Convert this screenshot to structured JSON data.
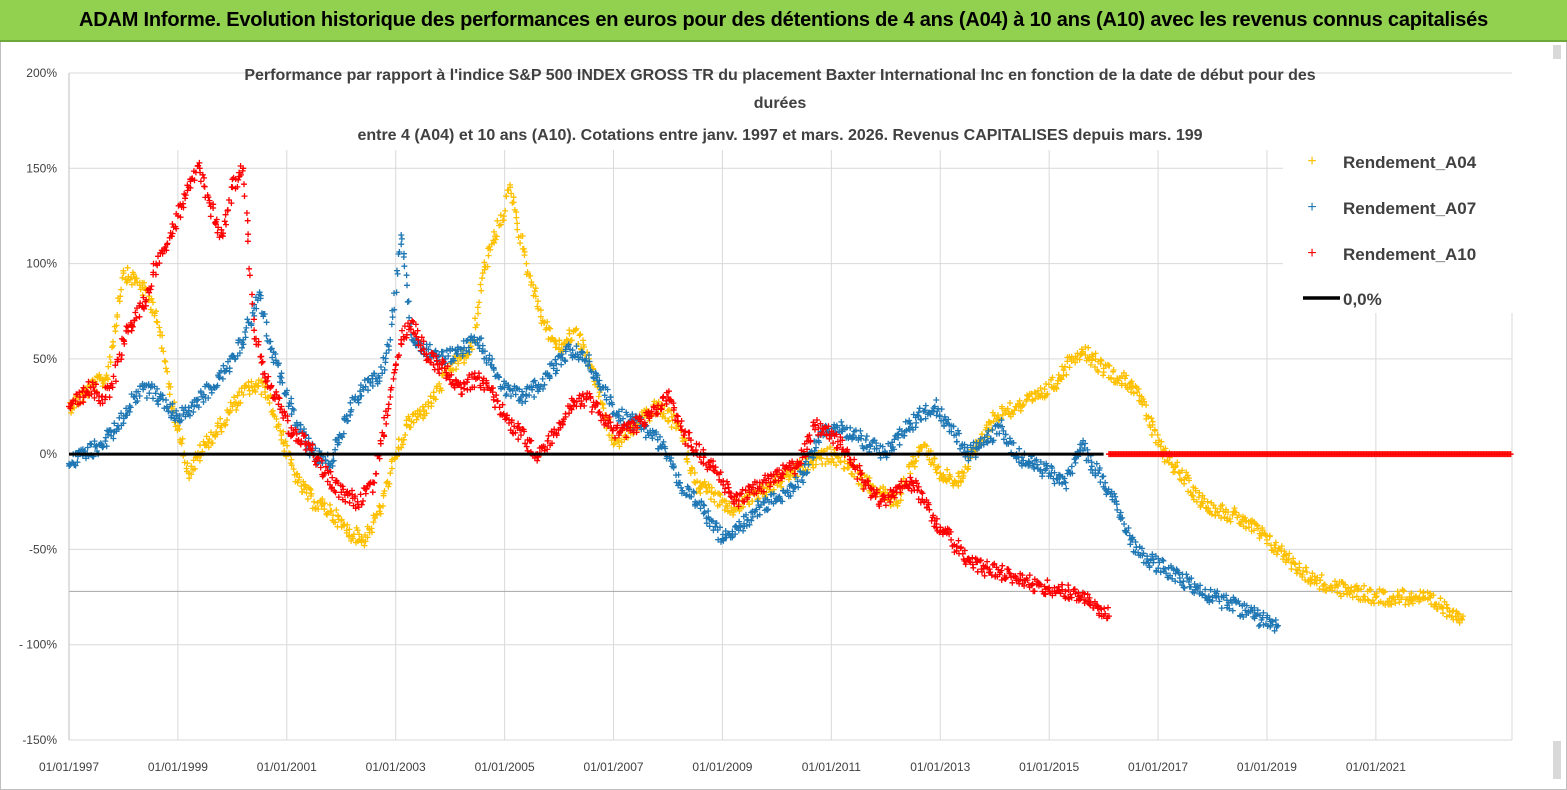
{
  "header": {
    "title": "ADAM Informe. Evolution historique des performances en euros pour des détentions de 4 ans (A04) à 10 ans (A10) avec les revenus connus capitalisés"
  },
  "chart_data": {
    "type": "scatter",
    "title_lines": [
      "Performance par rapport à l'indice S&P 500 INDEX GROSS TR  du placement Baxter International Inc en fonction de la date de début pour des",
      "durées",
      "entre 4 (A04) et 10 ans (A10). Cotations entre janv. 1997 et mars. 2026. Revenus CAPITALISES depuis mars. 199"
    ],
    "xlabel": "",
    "ylabel": "",
    "xlim": [
      1997.0,
      2023.5
    ],
    "ylim": [
      -150,
      200
    ],
    "yticks": [
      200,
      150,
      100,
      50,
      0,
      -50,
      -100,
      -150
    ],
    "ytick_labels": [
      "200%",
      "150%",
      "100%",
      "50%",
      "0%",
      "-50%",
      "- 100%",
      "-150%"
    ],
    "xtick_labels": [
      "01/01/1997",
      "01/01/1999",
      "01/01/2001",
      "01/01/2003",
      "01/01/2005",
      "01/01/2007",
      "01/01/2009",
      "01/01/2011",
      "01/01/2013",
      "01/01/2015",
      "01/01/2017",
      "01/01/2019",
      "01/01/2021"
    ],
    "xtick_years": [
      1997,
      1999,
      2001,
      2003,
      2005,
      2007,
      2009,
      2011,
      2013,
      2015,
      2017,
      2019,
      2021
    ],
    "legend_position": "right",
    "legend": [
      "Rendement_A04",
      "Rendement_A07",
      "Rendement_A10",
      "0,0%"
    ],
    "series": [
      {
        "name": "Rendement_A04",
        "color": "#ffc000",
        "x": [
          1997.0,
          1997.4,
          1997.7,
          1998.0,
          1998.3,
          1998.6,
          1998.9,
          1999.0,
          1999.2,
          1999.5,
          1999.8,
          2000.0,
          2000.3,
          2000.6,
          2000.9,
          2001.2,
          2001.5,
          2001.8,
          2002.1,
          2002.4,
          2002.7,
          2002.9,
          2003.2,
          2003.6,
          2004.0,
          2004.4,
          2004.6,
          2004.9,
          2005.1,
          2005.4,
          2005.7,
          2006.0,
          2006.3,
          2006.6,
          2007.0,
          2007.4,
          2007.8,
          2008.2,
          2008.5,
          2008.8,
          2009.1,
          2009.4,
          2009.7,
          2010.0,
          2010.3,
          2010.6,
          2011.0,
          2011.3,
          2011.6,
          2011.9,
          2012.2,
          2012.5,
          2012.7,
          2013.0,
          2013.3,
          2013.6,
          2014.0,
          2014.4,
          2014.8,
          2015.2,
          2015.4,
          2015.6,
          2016.0,
          2016.3,
          2016.6,
          2017.0,
          2017.4,
          2017.8,
          2018.2,
          2018.6,
          2019.0,
          2019.4,
          2019.8,
          2020.2,
          2020.6,
          2021.0,
          2021.4,
          2021.8,
          2022.2,
          2022.6
        ],
        "y": [
          25,
          35,
          40,
          95,
          90,
          75,
          25,
          15,
          -10,
          5,
          15,
          25,
          35,
          35,
          10,
          -15,
          -25,
          -30,
          -40,
          -45,
          -30,
          -10,
          15,
          25,
          45,
          55,
          95,
          120,
          140,
          100,
          70,
          55,
          65,
          45,
          5,
          15,
          25,
          15,
          -15,
          -20,
          -30,
          -25,
          -20,
          -15,
          -10,
          -5,
          0,
          -5,
          -15,
          -20,
          -25,
          -5,
          5,
          -10,
          -15,
          0,
          20,
          25,
          30,
          40,
          50,
          55,
          45,
          40,
          35,
          5,
          -10,
          -25,
          -30,
          -35,
          -45,
          -55,
          -65,
          -70,
          -72,
          -75,
          -75,
          -75,
          -80,
          -85
        ]
      },
      {
        "name": "Rendement_A07",
        "color": "#1f77b4",
        "x": [
          1997.0,
          1997.3,
          1997.6,
          1997.9,
          1998.2,
          1998.5,
          1998.8,
          1999.0,
          1999.3,
          1999.6,
          1999.9,
          2000.2,
          2000.5,
          2000.7,
          2000.9,
          2001.2,
          2001.5,
          2001.8,
          2002.1,
          2002.4,
          2002.7,
          2002.9,
          2003.1,
          2003.3,
          2003.6,
          2003.9,
          2004.2,
          2004.5,
          2004.8,
          2005.0,
          2005.3,
          2005.6,
          2005.9,
          2006.2,
          2006.5,
          2006.8,
          2007.1,
          2007.5,
          2007.9,
          2008.2,
          2008.5,
          2008.8,
          2009.0,
          2009.3,
          2009.6,
          2009.9,
          2010.2,
          2010.5,
          2010.8,
          2011.1,
          2011.4,
          2011.7,
          2012.0,
          2012.3,
          2012.6,
          2012.9,
          2013.2,
          2013.5,
          2013.8,
          2014.1,
          2014.4,
          2014.7,
          2015.0,
          2015.3,
          2015.6,
          2015.9,
          2016.2,
          2016.5,
          2016.8,
          2017.1,
          2017.4,
          2017.7,
          2018.0,
          2018.3,
          2018.6,
          2018.9,
          2019.2
        ],
        "y": [
          -5,
          0,
          5,
          15,
          30,
          35,
          25,
          20,
          25,
          35,
          45,
          60,
          85,
          55,
          40,
          15,
          0,
          -5,
          20,
          35,
          40,
          60,
          115,
          60,
          55,
          50,
          55,
          60,
          45,
          35,
          30,
          35,
          45,
          55,
          50,
          35,
          20,
          15,
          5,
          -15,
          -25,
          -35,
          -45,
          -40,
          -30,
          -25,
          -20,
          -10,
          10,
          15,
          10,
          5,
          0,
          10,
          20,
          25,
          15,
          0,
          5,
          15,
          0,
          -5,
          -10,
          -15,
          5,
          -10,
          -25,
          -45,
          -55,
          -60,
          -65,
          -70,
          -75,
          -78,
          -82,
          -87,
          -90
        ]
      },
      {
        "name": "Rendement_A10",
        "color": "#ff0000",
        "x": [
          1997.0,
          1997.2,
          1997.4,
          1997.6,
          1997.8,
          1998.0,
          1998.2,
          1998.4,
          1998.6,
          1998.8,
          1999.0,
          1999.2,
          1999.4,
          1999.6,
          1999.8,
          2000.0,
          2000.2,
          2000.4,
          2000.6,
          2000.9,
          2001.1,
          2001.4,
          2001.7,
          2002.0,
          2002.3,
          2002.6,
          2002.9,
          2003.1,
          2003.3,
          2003.6,
          2003.9,
          2004.2,
          2004.5,
          2004.8,
          2005.0,
          2005.3,
          2005.6,
          2005.9,
          2006.2,
          2006.5,
          2006.8,
          2007.1,
          2007.4,
          2007.7,
          2008.0,
          2008.3,
          2008.6,
          2008.9,
          2009.2,
          2009.5,
          2009.8,
          2010.1,
          2010.4,
          2010.7,
          2011.0,
          2011.3,
          2011.6,
          2011.9,
          2012.2,
          2012.5,
          2012.7,
          2012.9,
          2013.2,
          2013.5,
          2013.8,
          2014.1,
          2014.4,
          2014.7,
          2015.0,
          2015.3,
          2015.6,
          2015.9,
          2016.1
        ],
        "y": [
          25,
          30,
          35,
          30,
          35,
          60,
          70,
          80,
          100,
          110,
          125,
          140,
          150,
          130,
          115,
          140,
          150,
          65,
          40,
          25,
          10,
          5,
          -10,
          -20,
          -25,
          -15,
          30,
          60,
          70,
          50,
          45,
          35,
          40,
          30,
          20,
          10,
          0,
          10,
          25,
          30,
          20,
          10,
          15,
          20,
          30,
          10,
          0,
          -10,
          -25,
          -20,
          -15,
          -10,
          -5,
          15,
          10,
          0,
          -15,
          -25,
          -20,
          -15,
          -25,
          -35,
          -45,
          -55,
          -60,
          -62,
          -65,
          -68,
          -70,
          -72,
          -75,
          -80,
          -85
        ]
      },
      {
        "name": "0,0%",
        "color": "#000000",
        "x": [
          1997.0,
          2016.0
        ],
        "y": [
          0,
          0
        ]
      }
    ],
    "series_A10_zero_tail": {
      "x": [
        2016.1,
        2023.5
      ],
      "y": [
        0,
        0
      ]
    }
  }
}
